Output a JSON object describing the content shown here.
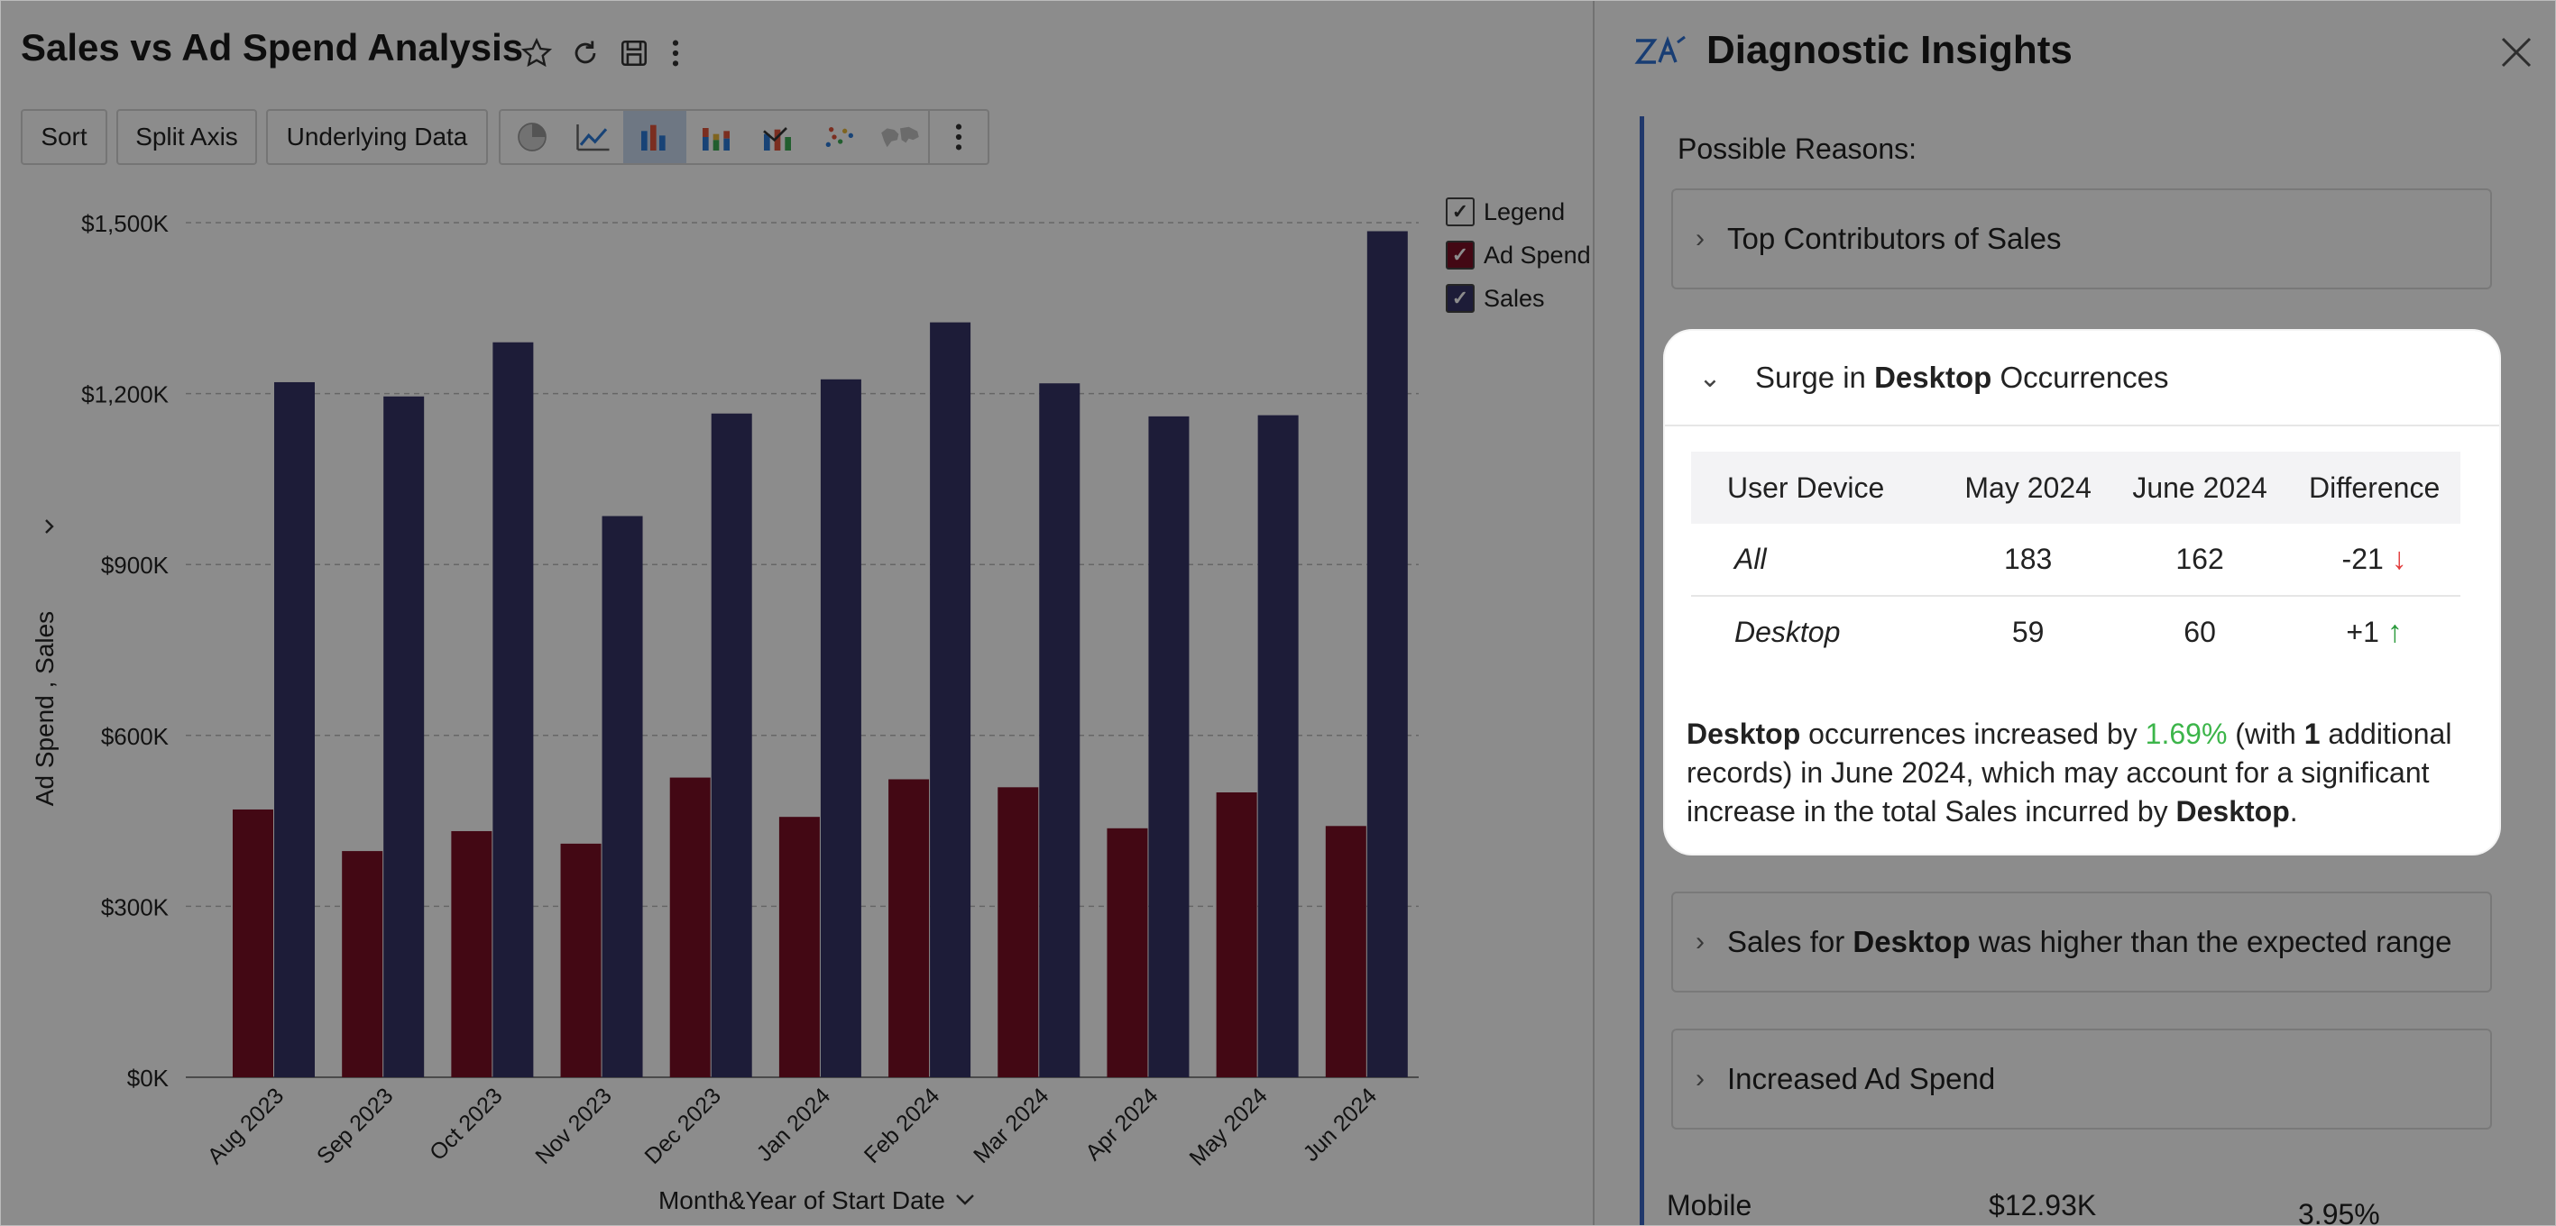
{
  "left_panel": {
    "title": "Sales vs Ad Spend Analysis",
    "title_icons": [
      "star-icon",
      "refresh-icon",
      "save-icon",
      "more-vertical-icon"
    ],
    "toolbar": {
      "sort_label": "Sort",
      "split_axis_label": "Split Axis",
      "underlying_data_label": "Underlying Data",
      "chart_types": [
        "pie-chart-icon",
        "line-chart-icon",
        "bar-chart-icon",
        "stacked-bar-icon",
        "combo-chart-icon",
        "scatter-icon",
        "map-icon"
      ],
      "selected_chart_type": "bar-chart-icon"
    },
    "legend": {
      "title": "Legend",
      "items": [
        {
          "label": "Ad Spend",
          "color": "#7a1025"
        },
        {
          "label": "Sales",
          "color": "#363467"
        }
      ]
    }
  },
  "chart_data": {
    "type": "bar",
    "categories": [
      "Aug 2023",
      "Sep 2023",
      "Oct 2023",
      "Nov 2023",
      "Dec 2023",
      "Jan 2024",
      "Feb 2024",
      "Mar 2024",
      "Apr 2024",
      "May 2024",
      "Jun 2024"
    ],
    "series": [
      {
        "name": "Ad Spend",
        "color": "#7a1025",
        "values": [
          470,
          397,
          432,
          410,
          526,
          457,
          523,
          509,
          437,
          500,
          441
        ]
      },
      {
        "name": "Sales",
        "color": "#363467",
        "values": [
          1220,
          1195,
          1290,
          985,
          1165,
          1225,
          1325,
          1218,
          1160,
          1162,
          1485
        ]
      }
    ],
    "ylabel": "Ad Spend , Sales",
    "xlabel": "Month&Year of Start Date",
    "ylim": [
      0,
      1500
    ],
    "yticks": [
      0,
      300,
      600,
      900,
      1200,
      1500
    ],
    "ytick_labels": [
      "$0K",
      "$300K",
      "$600K",
      "$900K",
      "$1,200K",
      "$1,500K"
    ],
    "grid": true,
    "legend_position": "right"
  },
  "right_panel": {
    "title": "Diagnostic Insights",
    "logo_icon": "zia-insights-icon",
    "reasons_label": "Possible Reasons:",
    "cards": [
      {
        "pre": "Top Contributors of Sales",
        "bold": "",
        "post": ""
      },
      {
        "pre": "Sales for ",
        "bold": "Desktop",
        "post": " was higher than the expected range"
      },
      {
        "pre": "Increased Ad Spend",
        "bold": "",
        "post": ""
      }
    ],
    "highlight": {
      "title_pre": "Surge in ",
      "title_bold": "Desktop",
      "title_post": " Occurrences",
      "columns": [
        "User Device",
        "May 2024",
        "June 2024",
        "Difference"
      ],
      "rows": [
        {
          "device": "All",
          "may": "183",
          "june": "162",
          "diff": "-21",
          "trend": "down"
        },
        {
          "device": "Desktop",
          "may": "59",
          "june": "60",
          "diff": "+1",
          "trend": "up"
        }
      ],
      "para": {
        "b1": "Desktop",
        "t1": " occurrences increased by ",
        "pct": "1.69%",
        "t2": " (with ",
        "b2": "1",
        "t3": " additional records) in June 2024, which may account for a significant increase in the total Sales incurred by ",
        "b3": "Desktop",
        "t4": "."
      }
    },
    "bottom_row": {
      "label": "Mobile",
      "value": "$12.93K",
      "pct": "3.95%"
    }
  }
}
